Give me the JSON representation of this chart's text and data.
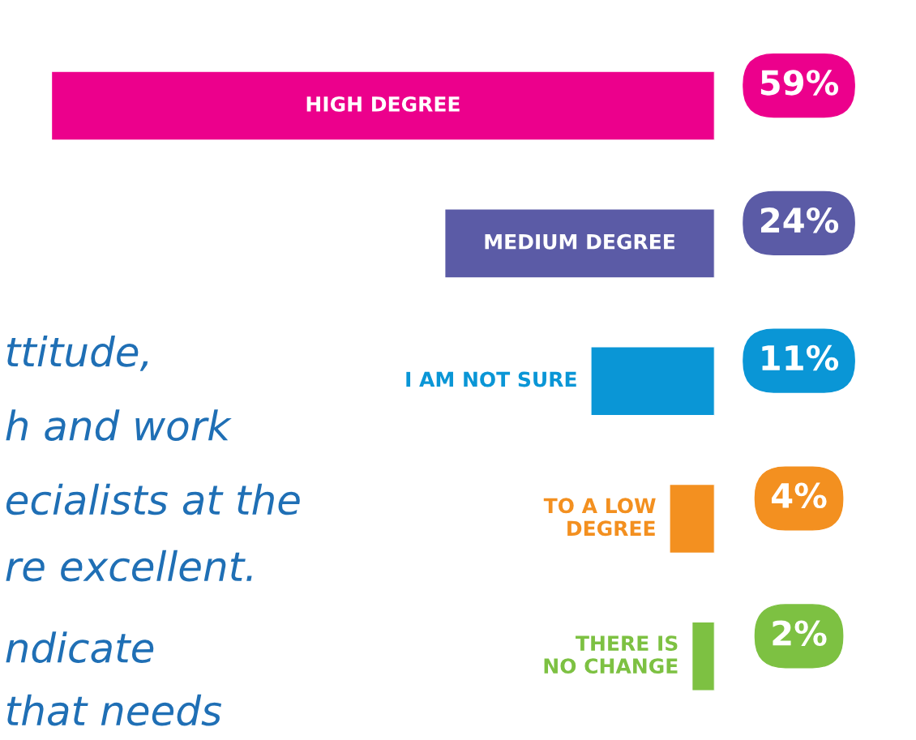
{
  "chart_data": {
    "type": "bar",
    "orientation": "horizontal",
    "categories": [
      "HIGH DEGREE",
      "MEDIUM DEGREE",
      "I AM NOT SURE",
      "TO A LOW DEGREE",
      "THERE IS NO CHANGE"
    ],
    "values": [
      59,
      24,
      11,
      4,
      2
    ],
    "colors": [
      "#ec008c",
      "#5b5ba6",
      "#0a96d6",
      "#f39020",
      "#7dc142"
    ],
    "value_labels": [
      "59%",
      "24%",
      "11%",
      "4%",
      "2%"
    ],
    "annotations": [
      "ttitude,",
      "h and work",
      "ecialists at the",
      "re excellent.",
      "ndicate",
      "that needs"
    ]
  }
}
